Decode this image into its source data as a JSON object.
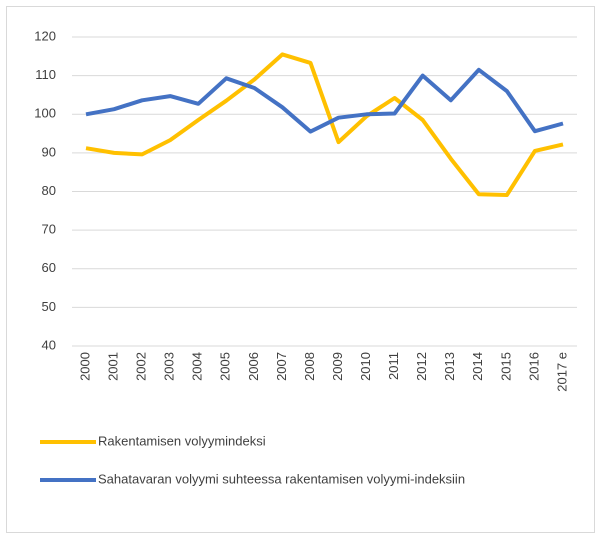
{
  "chart_data": {
    "type": "line",
    "categories": [
      "2000",
      "2001",
      "2002",
      "2003",
      "2004",
      "2005",
      "2006",
      "2007",
      "2008",
      "2009",
      "2010",
      "2011",
      "2012",
      "2013",
      "2014",
      "2015",
      "2016",
      "2017 e"
    ],
    "series": [
      {
        "name": "Rakentamisen volyymindeksi",
        "color": "#ffc000",
        "values": [
          91.2,
          90.0,
          89.6,
          93.3,
          98.5,
          103.5,
          109.0,
          115.5,
          113.3,
          92.8,
          99.5,
          104.2,
          98.5,
          88.5,
          79.3,
          79.1,
          90.5,
          92.2
        ]
      },
      {
        "name": "Sahatavaran volyymi suhteessa rakentamisen volyymi-indeksiin",
        "color": "#4472c4",
        "values": [
          100.0,
          101.3,
          103.6,
          104.7,
          102.7,
          109.3,
          106.8,
          101.8,
          95.5,
          99.1,
          100.0,
          100.2,
          110.0,
          103.6,
          111.5,
          106.0,
          95.6,
          97.6
        ]
      }
    ],
    "ylim": [
      40,
      120
    ],
    "yticks": [
      40,
      50,
      60,
      70,
      80,
      90,
      100,
      110,
      120
    ],
    "grid": true
  }
}
